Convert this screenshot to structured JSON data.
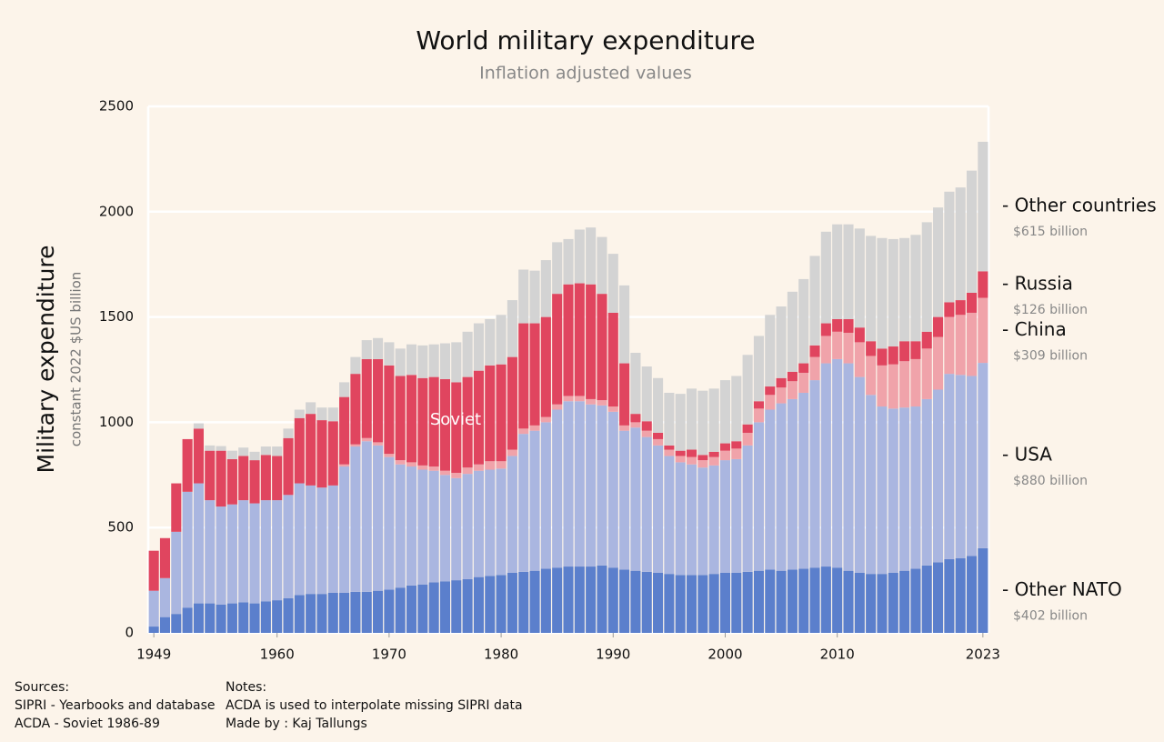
{
  "chart_data": {
    "type": "bar",
    "stacked": true,
    "title": "World military expenditure",
    "subtitle": "Inflation adjusted values",
    "y_label": "Military expenditure",
    "y_sublabel": "constant 2022 $US billion",
    "annotation": "Soviet",
    "x": [
      1949,
      1950,
      1951,
      1952,
      1953,
      1954,
      1955,
      1956,
      1957,
      1958,
      1959,
      1960,
      1961,
      1962,
      1963,
      1964,
      1965,
      1966,
      1967,
      1968,
      1969,
      1970,
      1971,
      1972,
      1973,
      1974,
      1975,
      1976,
      1977,
      1978,
      1979,
      1980,
      1981,
      1982,
      1983,
      1984,
      1985,
      1986,
      1987,
      1988,
      1989,
      1990,
      1991,
      1992,
      1993,
      1994,
      1995,
      1996,
      1997,
      1998,
      1999,
      2000,
      2001,
      2002,
      2003,
      2004,
      2005,
      2006,
      2007,
      2008,
      2009,
      2010,
      2011,
      2012,
      2013,
      2014,
      2015,
      2016,
      2017,
      2018,
      2019,
      2020,
      2021,
      2022,
      2023
    ],
    "xlim": [
      1948.5,
      2023.5
    ],
    "xticks": [
      1949,
      1960,
      1970,
      1980,
      1990,
      2000,
      2010,
      2023
    ],
    "ylim": [
      0,
      2500
    ],
    "yticks": [
      0,
      500,
      1000,
      1500,
      2000,
      2500
    ],
    "grid": true,
    "series": [
      {
        "name": "- Other NATO",
        "end_label": "$402 billion",
        "color": "#5b7fcc",
        "values": [
          30,
          75,
          90,
          120,
          140,
          140,
          135,
          140,
          145,
          140,
          150,
          155,
          165,
          180,
          185,
          185,
          190,
          190,
          195,
          195,
          200,
          205,
          215,
          225,
          230,
          240,
          245,
          250,
          255,
          265,
          270,
          275,
          285,
          290,
          295,
          305,
          310,
          315,
          315,
          315,
          320,
          310,
          300,
          295,
          290,
          285,
          280,
          275,
          275,
          275,
          280,
          285,
          285,
          290,
          295,
          300,
          295,
          300,
          305,
          310,
          315,
          310,
          295,
          285,
          280,
          280,
          285,
          295,
          305,
          320,
          335,
          350,
          355,
          365,
          402
        ]
      },
      {
        "name": "- USA",
        "end_label": "$880 billion",
        "color": "#aab6e0",
        "values": [
          170,
          185,
          390,
          550,
          570,
          490,
          465,
          470,
          485,
          475,
          480,
          475,
          490,
          530,
          515,
          505,
          510,
          600,
          690,
          715,
          690,
          630,
          585,
          565,
          545,
          530,
          505,
          485,
          500,
          505,
          505,
          505,
          555,
          655,
          665,
          695,
          750,
          785,
          785,
          770,
          760,
          740,
          660,
          680,
          640,
          605,
          560,
          535,
          525,
          510,
          515,
          535,
          540,
          600,
          705,
          760,
          795,
          810,
          835,
          890,
          965,
          990,
          985,
          930,
          850,
          795,
          780,
          775,
          770,
          790,
          820,
          880,
          870,
          855,
          880
        ]
      },
      {
        "name": "- China",
        "end_label": "$309 billion",
        "color": "#f0a3aa",
        "values": [
          0,
          0,
          0,
          0,
          0,
          0,
          0,
          0,
          0,
          0,
          0,
          0,
          0,
          0,
          0,
          0,
          0,
          10,
          10,
          15,
          15,
          15,
          20,
          20,
          20,
          20,
          20,
          25,
          30,
          30,
          40,
          35,
          30,
          25,
          25,
          25,
          25,
          25,
          25,
          25,
          25,
          25,
          25,
          25,
          30,
          30,
          30,
          30,
          35,
          35,
          40,
          45,
          50,
          60,
          65,
          70,
          75,
          85,
          95,
          110,
          130,
          130,
          145,
          165,
          185,
          195,
          210,
          220,
          225,
          240,
          250,
          270,
          285,
          300,
          309
        ]
      },
      {
        "name": "- Russia",
        "end_label": "$126 billion",
        "color": "#e0455f",
        "values": [
          190,
          190,
          230,
          250,
          260,
          235,
          265,
          215,
          210,
          205,
          215,
          210,
          270,
          310,
          340,
          320,
          305,
          320,
          335,
          375,
          395,
          420,
          400,
          415,
          415,
          425,
          435,
          430,
          430,
          445,
          455,
          460,
          440,
          500,
          485,
          475,
          525,
          530,
          535,
          545,
          505,
          445,
          295,
          40,
          45,
          30,
          20,
          25,
          35,
          25,
          25,
          35,
          35,
          40,
          35,
          40,
          45,
          45,
          45,
          55,
          60,
          60,
          65,
          70,
          70,
          80,
          85,
          95,
          85,
          80,
          95,
          70,
          70,
          95,
          126
        ]
      },
      {
        "name": "- Other countries",
        "end_label": "$615 billion",
        "color": "#d3d3d3",
        "values": [
          0,
          0,
          0,
          0,
          25,
          25,
          22,
          40,
          40,
          40,
          40,
          45,
          45,
          40,
          55,
          60,
          65,
          70,
          80,
          90,
          100,
          110,
          130,
          145,
          155,
          155,
          170,
          190,
          215,
          225,
          220,
          235,
          270,
          255,
          250,
          270,
          245,
          215,
          255,
          270,
          270,
          280,
          370,
          290,
          260,
          260,
          250,
          270,
          290,
          305,
          300,
          300,
          310,
          330,
          310,
          340,
          340,
          380,
          400,
          425,
          435,
          450,
          450,
          470,
          500,
          525,
          510,
          490,
          505,
          520,
          520,
          525,
          535,
          580,
          615
        ]
      }
    ]
  },
  "footer": {
    "sources": [
      "Sources:",
      "SIPRI - Yearbooks and database",
      "ACDA - Soviet 1986-89"
    ],
    "notes": [
      "Notes:",
      "ACDA is used to interpolate missing SIPRI data",
      "Made by : Kaj Tallungs"
    ]
  }
}
